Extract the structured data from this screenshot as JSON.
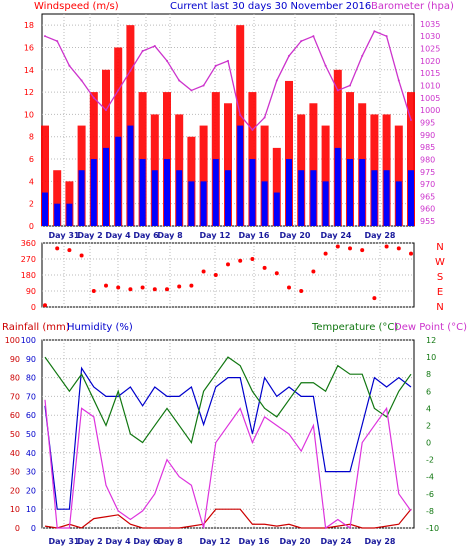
{
  "header": {
    "wind_label": "Windspeed (m/s)",
    "title": "Current last 30 days 30 November 2016",
    "baro_label": "Barometer (hpa)"
  },
  "bottom_header": {
    "rain_label": "Rainfall (mm)",
    "humidity_label": "Humidity (%)",
    "temp_label": "Temperature (°C)",
    "dew_label": "Dew Point (°C)"
  },
  "colors": {
    "wind_gust": "#ff0000",
    "wind_avg": "#0000ff",
    "barometer": "#cc33cc",
    "direction": "#ff0000",
    "rainfall": "#cc0000",
    "humidity": "#0000cc",
    "temperature": "#117711",
    "dewpoint": "#dd33dd",
    "day_label": "#1a1a9c",
    "grid": "#bbbbbb"
  },
  "chart_data": [
    {
      "type": "line",
      "title": "Current last 30 days 30 November 2016",
      "ylabel": "Windspeed (m/s)",
      "ylabel_right": "Barometer (hpa)",
      "ylim": [
        0,
        19
      ],
      "ylim_right": [
        953,
        1039
      ],
      "y_ticks": [
        0,
        2,
        4,
        6,
        8,
        10,
        12,
        14,
        16,
        18
      ],
      "y_ticks_right": [
        955,
        960,
        965,
        970,
        975,
        980,
        985,
        990,
        995,
        1000,
        1005,
        1010,
        1015,
        1020,
        1025,
        1030,
        1035
      ],
      "x_day_labels": [
        "Day 31",
        "Day 2",
        "Day 4",
        "Day 6",
        "Day 8",
        "Day 12",
        "Day 16",
        "Day 20",
        "Day 24",
        "Day 28"
      ],
      "x": [
        "Oct 31",
        "Nov 1",
        "Nov 2",
        "Nov 3",
        "Nov 4",
        "Nov 5",
        "Nov 6",
        "Nov 7",
        "Nov 8",
        "Nov 9",
        "Nov 10",
        "Nov 11",
        "Nov 12",
        "Nov 13",
        "Nov 14",
        "Nov 15",
        "Nov 16",
        "Nov 17",
        "Nov 18",
        "Nov 19",
        "Nov 20",
        "Nov 21",
        "Nov 22",
        "Nov 23",
        "Nov 24",
        "Nov 25",
        "Nov 26",
        "Nov 27",
        "Nov 28",
        "Nov 29",
        "Nov 30"
      ],
      "series": [
        {
          "name": "Windspeed (m/s)",
          "role": "gust",
          "values": [
            9,
            5,
            4,
            9,
            12,
            14,
            16,
            18,
            12,
            10,
            12,
            10,
            8,
            9,
            12,
            11,
            18,
            12,
            9,
            7,
            13,
            10,
            11,
            9,
            14,
            12,
            11,
            10,
            10,
            9,
            12
          ]
        },
        {
          "name": "Windspeed (m/s)",
          "role": "average",
          "values": [
            3,
            2,
            2,
            5,
            6,
            7,
            8,
            9,
            6,
            5,
            6,
            5,
            4,
            4,
            6,
            5,
            9,
            6,
            4,
            3,
            6,
            5,
            5,
            4,
            7,
            6,
            6,
            5,
            5,
            4,
            5
          ]
        },
        {
          "name": "Barometer (hpa)",
          "values": [
            1030,
            1028,
            1018,
            1012,
            1005,
            1000,
            1008,
            1016,
            1024,
            1026,
            1020,
            1012,
            1008,
            1010,
            1018,
            1020,
            998,
            992,
            997,
            1012,
            1022,
            1028,
            1030,
            1018,
            1008,
            1010,
            1022,
            1032,
            1030,
            1012,
            996
          ]
        }
      ]
    },
    {
      "type": "scatter",
      "ylabel": "Wind direction",
      "ylim": [
        0,
        360
      ],
      "y_ticks": [
        0,
        90,
        180,
        270,
        360
      ],
      "compass_labels": [
        "N",
        "W",
        "S",
        "E",
        "N"
      ],
      "x": [
        "Oct 31",
        "Nov 1",
        "Nov 2",
        "Nov 3",
        "Nov 4",
        "Nov 5",
        "Nov 6",
        "Nov 7",
        "Nov 8",
        "Nov 9",
        "Nov 10",
        "Nov 11",
        "Nov 12",
        "Nov 13",
        "Nov 14",
        "Nov 15",
        "Nov 16",
        "Nov 17",
        "Nov 18",
        "Nov 19",
        "Nov 20",
        "Nov 21",
        "Nov 22",
        "Nov 23",
        "Nov 24",
        "Nov 25",
        "Nov 26",
        "Nov 27",
        "Nov 28",
        "Nov 29",
        "Nov 30"
      ],
      "values": [
        10,
        330,
        320,
        290,
        90,
        120,
        110,
        100,
        110,
        100,
        100,
        115,
        120,
        200,
        180,
        240,
        260,
        270,
        220,
        190,
        110,
        90,
        200,
        300,
        340,
        330,
        320,
        50,
        340,
        330,
        300
      ]
    },
    {
      "type": "line",
      "ylabel": "Rainfall (mm) / Humidity (%)",
      "ylabel_right": "Temperature (°C) / Dew Point (°C)",
      "ylim": [
        0,
        100
      ],
      "ylim_right": [
        -10,
        12
      ],
      "y_ticks": [
        0,
        10,
        20,
        30,
        40,
        50,
        60,
        70,
        80,
        90,
        100
      ],
      "y_ticks_right": [
        -10,
        -8,
        -6,
        -4,
        -2,
        0,
        2,
        4,
        6,
        8,
        10,
        12
      ],
      "x_day_labels": [
        "Day 31",
        "Day 2",
        "Day 4",
        "Day 6",
        "Day 8",
        "Day 12",
        "Day 16",
        "Day 20",
        "Day 24",
        "Day 28"
      ],
      "x": [
        "Oct 31",
        "Nov 1",
        "Nov 2",
        "Nov 3",
        "Nov 4",
        "Nov 5",
        "Nov 6",
        "Nov 7",
        "Nov 8",
        "Nov 9",
        "Nov 10",
        "Nov 11",
        "Nov 12",
        "Nov 13",
        "Nov 14",
        "Nov 15",
        "Nov 16",
        "Nov 17",
        "Nov 18",
        "Nov 19",
        "Nov 20",
        "Nov 21",
        "Nov 22",
        "Nov 23",
        "Nov 24",
        "Nov 25",
        "Nov 26",
        "Nov 27",
        "Nov 28",
        "Nov 29",
        "Nov 30"
      ],
      "series": [
        {
          "name": "Rainfall (mm)",
          "axis": "left",
          "values": [
            1,
            0,
            2,
            0,
            5,
            6,
            7,
            2,
            0,
            0,
            0,
            0,
            1,
            2,
            10,
            10,
            10,
            2,
            2,
            1,
            2,
            0,
            0,
            0,
            1,
            2,
            0,
            0,
            1,
            2,
            10
          ]
        },
        {
          "name": "Humidity (%)",
          "axis": "left",
          "values": [
            65,
            10,
            10,
            85,
            75,
            70,
            70,
            75,
            65,
            75,
            70,
            70,
            75,
            55,
            75,
            80,
            80,
            50,
            80,
            70,
            75,
            70,
            70,
            30,
            30,
            30,
            55,
            80,
            75,
            80,
            75
          ]
        },
        {
          "name": "Temperature (°C)",
          "axis": "right",
          "values": [
            10,
            8,
            6,
            8,
            5,
            2,
            6,
            1,
            0,
            2,
            4,
            2,
            0,
            6,
            8,
            10,
            9,
            6,
            4,
            3,
            5,
            7,
            7,
            6,
            9,
            8,
            8,
            4,
            3,
            6,
            8
          ]
        },
        {
          "name": "Dew Point (°C)",
          "axis": "right",
          "values": [
            5,
            -10,
            -10,
            4,
            3,
            -5,
            -8,
            -9,
            -8,
            -6,
            -2,
            -4,
            -5,
            -10,
            0,
            2,
            4,
            0,
            3,
            2,
            1,
            -1,
            2,
            -10,
            -9,
            -10,
            0,
            2,
            4,
            -6,
            -8
          ]
        }
      ]
    }
  ]
}
